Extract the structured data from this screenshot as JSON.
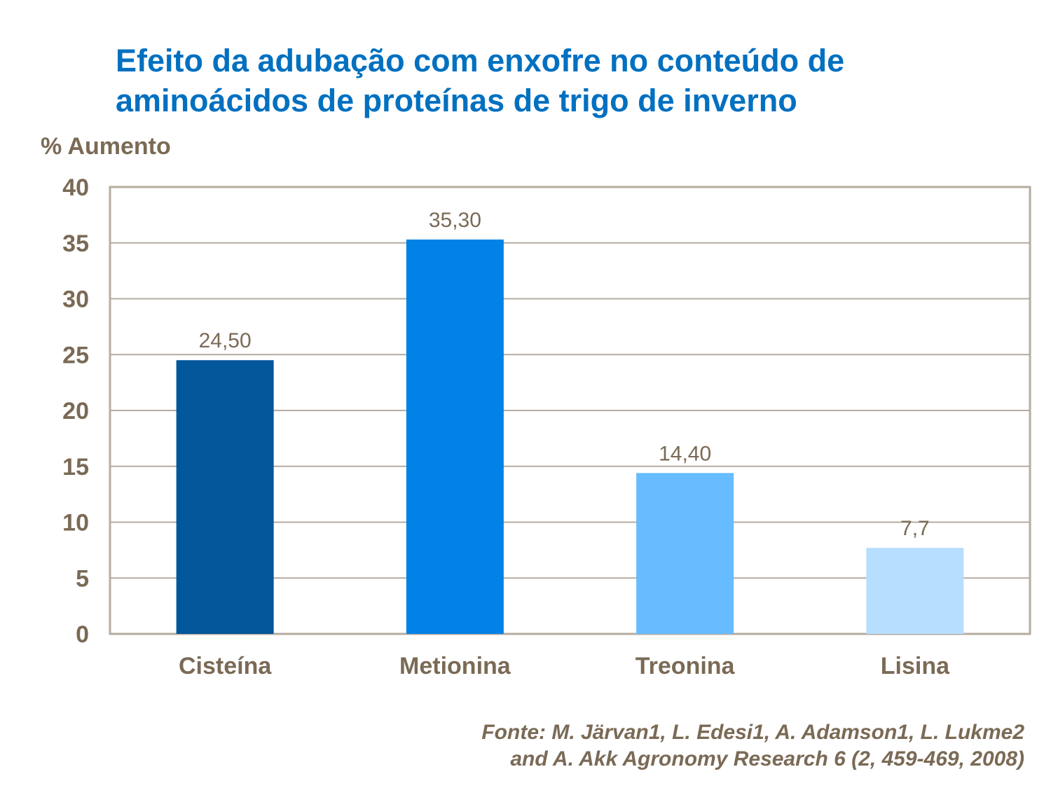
{
  "chart_data": {
    "type": "bar",
    "title": [
      "Efeito da adubação com enxofre no conteúdo de",
      "aminoácidos de proteínas de trigo de inverno"
    ],
    "ylabel": "% Aumento",
    "xlabel": "",
    "ylim": [
      0,
      40
    ],
    "yticks": [
      "0",
      "5",
      "10",
      "15",
      "20",
      "25",
      "30",
      "35",
      "40"
    ],
    "grid": true,
    "categories": [
      "Cisteína",
      "Metionina",
      "Treonina",
      "Lisina"
    ],
    "values": [
      24.5,
      35.3,
      14.4,
      7.7
    ],
    "data_labels": [
      "24,50",
      "35,30",
      "14,40",
      "7,7"
    ],
    "colors": [
      "#02569A",
      "#0082E6",
      "#66BCFF",
      "#B8DEFF"
    ],
    "source": [
      "Fonte: M. Järvan1, L. Edesi1, A. Adamson1, L. Lukme2",
      "and A. Akk Agronomy Research 6 (2, 459-469, 2008)"
    ]
  }
}
